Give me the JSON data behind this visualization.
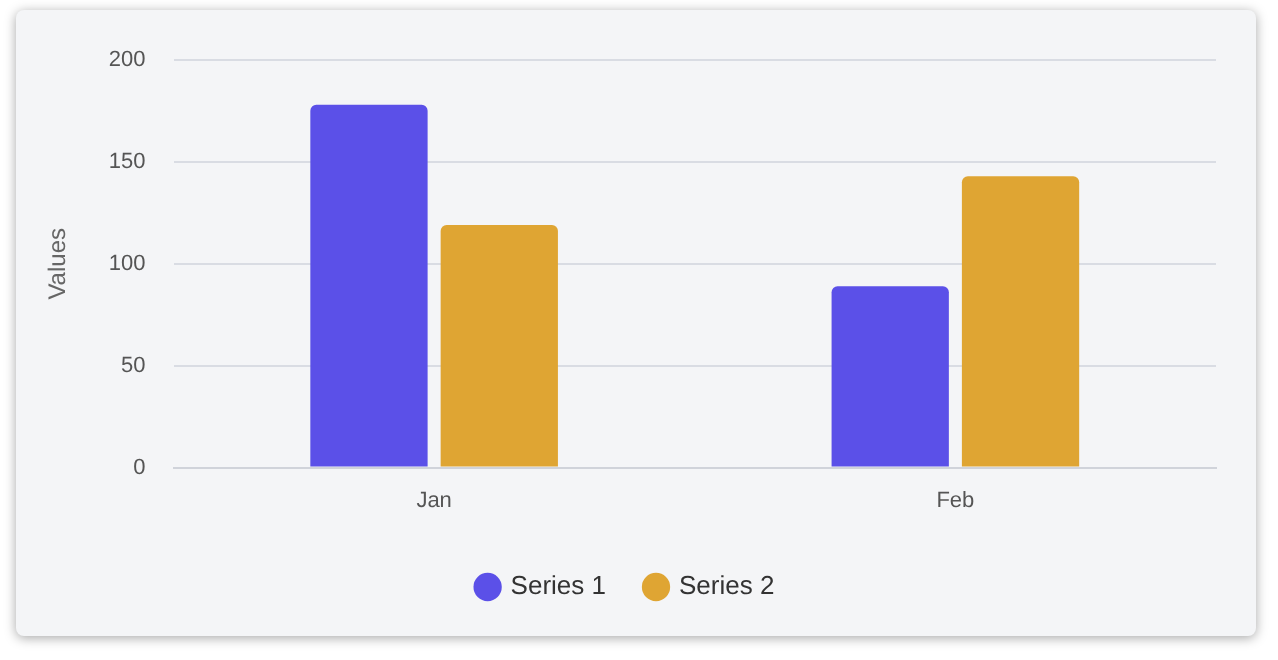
{
  "chart_data": {
    "type": "bar",
    "ylabel": "Values",
    "categories": [
      "Jan",
      "Feb"
    ],
    "series": [
      {
        "name": "Series 1",
        "color": "#5b50e8",
        "values": [
          178,
          89
        ]
      },
      {
        "name": "Series 2",
        "color": "#dfa533",
        "values": [
          119,
          143
        ]
      }
    ],
    "ylim": [
      0,
      200
    ],
    "yticks": [
      0,
      50,
      100,
      150,
      200
    ],
    "grid": "y",
    "legend": "bottom"
  }
}
